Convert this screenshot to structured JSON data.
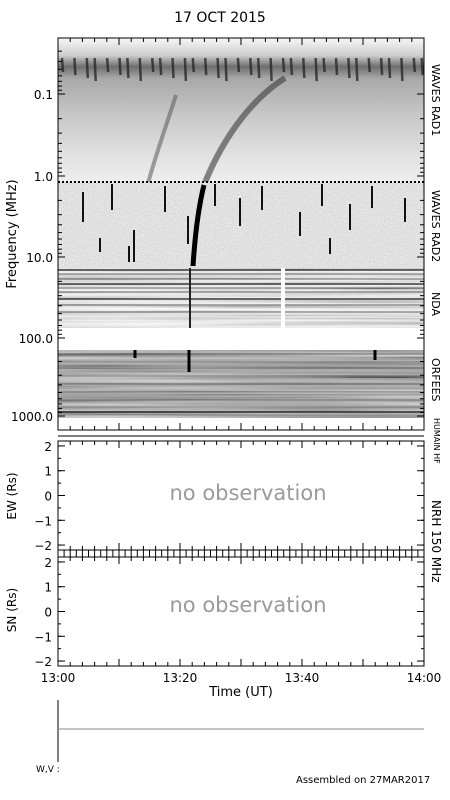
{
  "title": "17 OCT 2015",
  "footer": {
    "assembled": "Assembled on 27MAR2017",
    "wv_label": "W,V :"
  },
  "spectrogram": {
    "ylabel": "Frequency (MHz)",
    "yticks": [
      "0.1",
      "1.0",
      "10.0",
      "100.0",
      "1000.0"
    ],
    "instruments": [
      "WAVES RAD1",
      "WAVES RAD2",
      "NDA",
      "ORFEES",
      "HUMAIN HF"
    ],
    "yscale": "log",
    "ylim_mhz": [
      0.025,
      1500
    ]
  },
  "nrh": {
    "instrument": "NRH 150 MHz",
    "ew": {
      "ylabel": "EW (Rs)",
      "message": "no observation",
      "yticks": [
        "2",
        "1",
        "0",
        "−1",
        "−2"
      ],
      "ylim": [
        -2.2,
        2.2
      ]
    },
    "sn": {
      "ylabel": "SN (Rs)",
      "message": "no observation",
      "yticks": [
        "2",
        "1",
        "0",
        "−1",
        "−2"
      ],
      "ylim": [
        -2.2,
        2.2
      ]
    }
  },
  "chart_data": {
    "type": "heatmap",
    "title": "17 OCT 2015",
    "xlabel": "Time (UT)",
    "xticks": [
      "13:00",
      "13:20",
      "13:40",
      "14:00"
    ],
    "xlim": [
      "13:00",
      "14:00"
    ],
    "ylabel": "Frequency (MHz)",
    "colors": {
      "background": "#ffffff",
      "ink": "#000000",
      "message": "#9a9a9a"
    }
  }
}
